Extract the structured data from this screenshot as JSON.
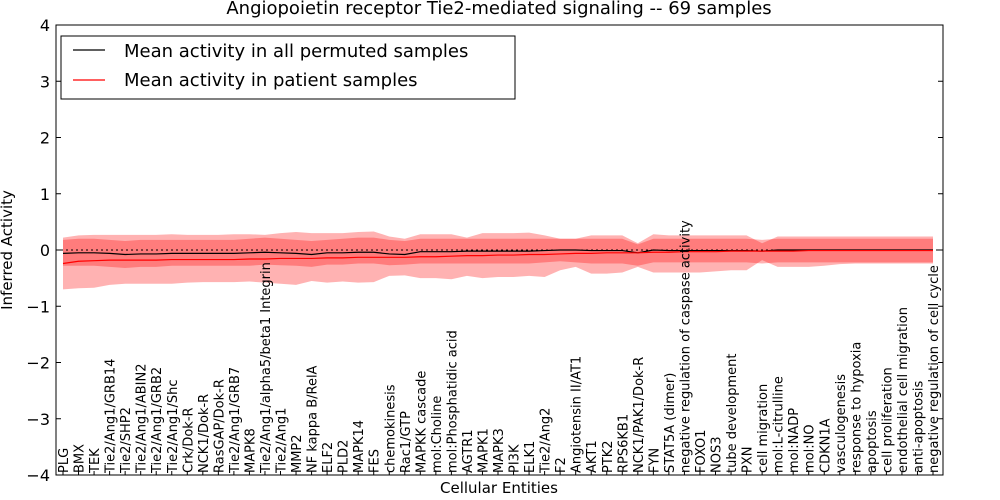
{
  "chart_data": {
    "type": "line",
    "title": "Angiopoietin receptor Tie2-mediated signaling -- 69 samples",
    "xlabel": "Cellular Entities",
    "ylabel": "Inferred Activity",
    "ylim": [
      -4,
      4
    ],
    "yticks": [
      -4,
      -3,
      -2,
      -1,
      0,
      1,
      2,
      3,
      4
    ],
    "ytick_labels": [
      "−4",
      "−3",
      "−2",
      "−1",
      "0",
      "1",
      "2",
      "3",
      "4"
    ],
    "legend_position": "top-left",
    "reference_line": 0,
    "categories": [
      "PLG",
      "BMX",
      "TEK",
      "Tie2/Ang1/GRB14",
      "Tie2/SHP2",
      "Tie2/Ang1/ABIN2",
      "Tie2/Ang1/GRB2",
      "Tie2/Ang1/Shc",
      "Crk/Dok-R",
      "NCK1/Dok-R",
      "RasGAP/Dok-R",
      "Tie2/Ang1/GRB7",
      "MAPK8",
      "Tie2/Ang1/alpha5/beta1 Integrin",
      "Tie2/Ang1",
      "MMP2",
      "NF kappa B/RelA",
      "ELF2",
      "PLD2",
      "MAPK14",
      "FES",
      "chemokinesis",
      "Rac1/GTP",
      "MAPKK cascade",
      "mol:Choline",
      "mol:Phosphatidic acid",
      "AGTR1",
      "MAPK1",
      "MAPK3",
      "PI3K",
      "ELK1",
      "Tie2/Ang2",
      "F2",
      "Angiotensin II/AT1",
      "AKT1",
      "PTK2",
      "RPS6KB1",
      "NCK1/PAK1/Dok-R",
      "FYN",
      "STAT5A (dimer)",
      "negative regulation of caspase activity",
      "FOXO1",
      "NOS3",
      "tube development",
      "PXN",
      "cell migration",
      "mol:L-citrulline",
      "mol:NADP",
      "mol:NO",
      "CDKN1A",
      "vasculogenesis",
      "response to hypoxia",
      "apoptosis",
      "cell proliferation",
      "endothelial cell migration",
      "anti-apoptosis",
      "negative regulation of cell cycle"
    ],
    "series": [
      {
        "name": "Mean activity in all permuted samples",
        "color": "#000000",
        "values": [
          -0.06,
          -0.05,
          -0.05,
          -0.06,
          -0.08,
          -0.07,
          -0.07,
          -0.06,
          -0.06,
          -0.06,
          -0.06,
          -0.06,
          -0.05,
          -0.04,
          -0.05,
          -0.06,
          -0.08,
          -0.05,
          -0.05,
          -0.04,
          -0.04,
          -0.07,
          -0.08,
          -0.03,
          -0.03,
          -0.03,
          -0.02,
          -0.02,
          -0.02,
          -0.02,
          -0.02,
          -0.01,
          0.0,
          0.0,
          -0.01,
          -0.01,
          -0.01,
          -0.05,
          0.0,
          -0.01,
          -0.01,
          -0.01,
          -0.01,
          -0.01,
          -0.01,
          -0.02,
          0.0,
          0.0,
          0.0,
          0.0,
          0.0,
          0.0,
          0.0,
          0.0,
          0.0,
          0.0,
          0.0
        ],
        "lower": [
          -0.28,
          -0.28,
          -0.28,
          -0.3,
          -0.32,
          -0.3,
          -0.3,
          -0.28,
          -0.28,
          -0.28,
          -0.28,
          -0.28,
          -0.28,
          -0.26,
          -0.27,
          -0.28,
          -0.3,
          -0.26,
          -0.26,
          -0.24,
          -0.24,
          -0.27,
          -0.26,
          -0.24,
          -0.24,
          -0.24,
          -0.24,
          -0.24,
          -0.24,
          -0.24,
          -0.24,
          -0.22,
          -0.2,
          -0.22,
          -0.24,
          -0.24,
          -0.24,
          -0.28,
          -0.22,
          -0.22,
          -0.22,
          -0.22,
          -0.22,
          -0.22,
          -0.22,
          -0.24,
          -0.22,
          -0.22,
          -0.22,
          -0.22,
          -0.22,
          -0.22,
          -0.22,
          -0.22,
          -0.22,
          -0.22,
          -0.22
        ],
        "upper": [
          0.18,
          0.2,
          0.2,
          0.18,
          0.16,
          0.18,
          0.18,
          0.18,
          0.18,
          0.18,
          0.18,
          0.18,
          0.2,
          0.22,
          0.2,
          0.18,
          0.16,
          0.18,
          0.2,
          0.22,
          0.22,
          0.18,
          0.16,
          0.2,
          0.2,
          0.2,
          0.2,
          0.2,
          0.2,
          0.2,
          0.2,
          0.2,
          0.2,
          0.2,
          0.2,
          0.2,
          0.2,
          0.1,
          0.2,
          0.2,
          0.2,
          0.2,
          0.2,
          0.2,
          0.2,
          0.18,
          0.2,
          0.2,
          0.2,
          0.2,
          0.2,
          0.2,
          0.2,
          0.2,
          0.2,
          0.2,
          0.2
        ]
      },
      {
        "name": "Mean activity in patient samples",
        "color": "#ff0000",
        "values": [
          -0.24,
          -0.2,
          -0.19,
          -0.18,
          -0.18,
          -0.18,
          -0.18,
          -0.17,
          -0.17,
          -0.17,
          -0.17,
          -0.17,
          -0.16,
          -0.16,
          -0.15,
          -0.15,
          -0.15,
          -0.14,
          -0.14,
          -0.13,
          -0.13,
          -0.13,
          -0.13,
          -0.12,
          -0.12,
          -0.11,
          -0.1,
          -0.1,
          -0.09,
          -0.09,
          -0.08,
          -0.08,
          -0.07,
          -0.06,
          -0.06,
          -0.05,
          -0.05,
          -0.05,
          -0.04,
          -0.04,
          -0.03,
          -0.03,
          -0.03,
          -0.02,
          -0.02,
          -0.02,
          -0.02,
          -0.02,
          -0.01,
          -0.01,
          -0.01,
          -0.01,
          -0.01,
          -0.01,
          -0.01,
          -0.01,
          -0.01
        ],
        "lower": [
          -0.7,
          -0.68,
          -0.67,
          -0.62,
          -0.6,
          -0.6,
          -0.6,
          -0.6,
          -0.58,
          -0.57,
          -0.57,
          -0.57,
          -0.56,
          -0.58,
          -0.6,
          -0.62,
          -0.55,
          -0.58,
          -0.56,
          -0.58,
          -0.57,
          -0.46,
          -0.45,
          -0.5,
          -0.5,
          -0.52,
          -0.46,
          -0.5,
          -0.48,
          -0.48,
          -0.46,
          -0.48,
          -0.36,
          -0.3,
          -0.42,
          -0.42,
          -0.4,
          -0.3,
          -0.4,
          -0.4,
          -0.4,
          -0.4,
          -0.38,
          -0.36,
          -0.36,
          -0.18,
          -0.3,
          -0.3,
          -0.3,
          -0.28,
          -0.25,
          -0.24,
          -0.24,
          -0.24,
          -0.24,
          -0.24,
          -0.24
        ],
        "upper": [
          0.22,
          0.26,
          0.27,
          0.27,
          0.27,
          0.27,
          0.27,
          0.28,
          0.27,
          0.27,
          0.27,
          0.28,
          0.28,
          0.27,
          0.3,
          0.32,
          0.3,
          0.3,
          0.3,
          0.32,
          0.33,
          0.24,
          0.2,
          0.28,
          0.28,
          0.28,
          0.22,
          0.3,
          0.3,
          0.3,
          0.31,
          0.26,
          0.2,
          0.2,
          0.26,
          0.26,
          0.26,
          0.12,
          0.28,
          0.26,
          0.26,
          0.26,
          0.26,
          0.26,
          0.26,
          0.12,
          0.24,
          0.24,
          0.24,
          0.24,
          0.24,
          0.24,
          0.24,
          0.24,
          0.24,
          0.24,
          0.24
        ]
      }
    ]
  }
}
